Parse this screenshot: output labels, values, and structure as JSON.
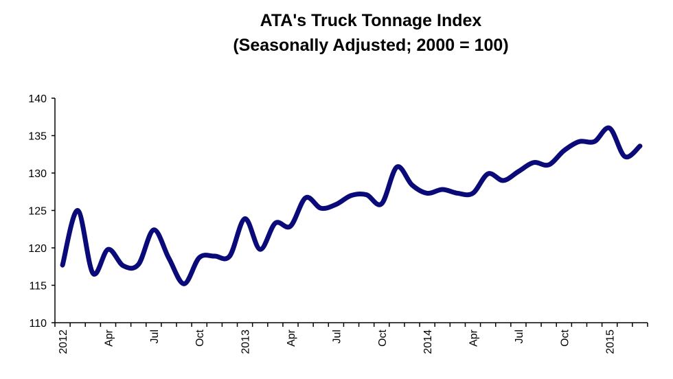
{
  "chart_data": {
    "type": "line",
    "title": "ATA's  Truck Tonnage Index",
    "subtitle": "(Seasonally Adjusted; 2000 = 100)",
    "xlabel": "",
    "ylabel": "",
    "ylim": [
      110,
      140
    ],
    "yticks": [
      110,
      115,
      120,
      125,
      130,
      135,
      140
    ],
    "grid": false,
    "line_color": "#0a0a78",
    "x_tick_labels": [
      "2012",
      "Apr",
      "Jul",
      "Oct",
      "2013",
      "Apr",
      "Jul",
      "Oct",
      "2014",
      "Apr",
      "Jul",
      "Oct",
      "2015"
    ],
    "x": [
      "2012-01",
      "2012-02",
      "2012-03",
      "2012-04",
      "2012-05",
      "2012-06",
      "2012-07",
      "2012-08",
      "2012-09",
      "2012-10",
      "2012-11",
      "2012-12",
      "2013-01",
      "2013-02",
      "2013-03",
      "2013-04",
      "2013-05",
      "2013-06",
      "2013-07",
      "2013-08",
      "2013-09",
      "2013-10",
      "2013-11",
      "2013-12",
      "2014-01",
      "2014-02",
      "2014-03",
      "2014-04",
      "2014-05",
      "2014-06",
      "2014-07",
      "2014-08",
      "2014-09",
      "2014-10",
      "2014-11",
      "2014-12",
      "2015-01",
      "2015-02",
      "2015-03"
    ],
    "series": [
      {
        "name": "Truck Tonnage Index",
        "values": [
          117.7,
          125.0,
          116.6,
          119.8,
          117.6,
          117.8,
          122.4,
          118.6,
          115.2,
          118.7,
          118.9,
          118.9,
          123.9,
          119.8,
          123.3,
          122.9,
          126.7,
          125.3,
          125.8,
          127.0,
          127.1,
          125.9,
          130.8,
          128.4,
          127.3,
          127.8,
          127.3,
          127.3,
          129.9,
          129.0,
          130.2,
          131.4,
          131.1,
          133.0,
          134.2,
          134.2,
          136.0,
          132.2,
          133.6
        ]
      }
    ]
  }
}
